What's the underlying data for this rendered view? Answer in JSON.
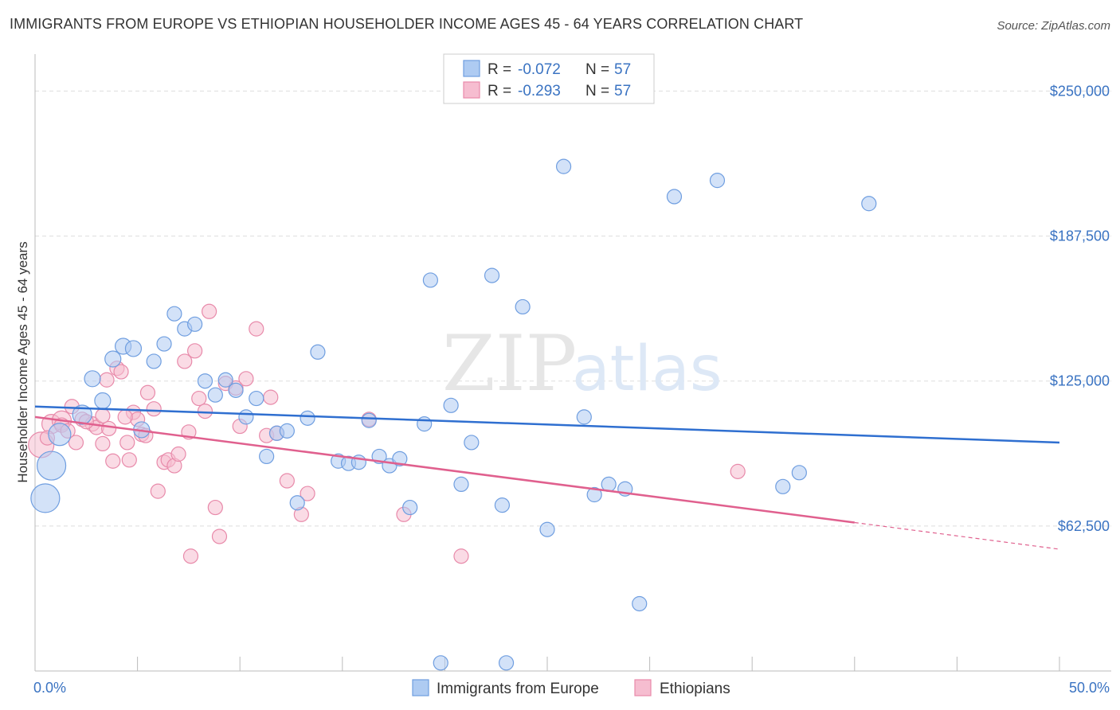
{
  "title": "IMMIGRANTS FROM EUROPE VS ETHIOPIAN HOUSEHOLDER INCOME AGES 45 - 64 YEARS CORRELATION CHART",
  "source": "Source: ZipAtlas.com",
  "watermark": {
    "part1": "ZIP",
    "part2": "atlas"
  },
  "colors": {
    "blue_fill": "#aecbf2",
    "blue_stroke": "#6f9ee0",
    "blue_line": "#2f6fd0",
    "pink_fill": "#f6bdd0",
    "pink_stroke": "#e88aaa",
    "pink_line": "#e0608e",
    "axis_text": "#3a73c2",
    "grid": "#dddddd"
  },
  "legend": {
    "rows": [
      {
        "r_label": "R =",
        "r_value": "-0.072",
        "n_label": "N =",
        "n_value": "57"
      },
      {
        "r_label": "R =",
        "r_value": "-0.293",
        "n_label": "N =",
        "n_value": "57"
      }
    ]
  },
  "chart_data": {
    "type": "scatter",
    "ylabel": "Householder Income Ages 45 - 64 years",
    "xlim": [
      0,
      50
    ],
    "ylim": [
      0,
      262500
    ],
    "y_ticks": [
      {
        "value": 62500,
        "label": "$62,500"
      },
      {
        "value": 125000,
        "label": "$125,000"
      },
      {
        "value": 187500,
        "label": "$187,500"
      },
      {
        "value": 250000,
        "label": "$250,000"
      }
    ],
    "x_tick_labels": {
      "min": "0.0%",
      "max": "50.0%"
    },
    "x_minor_ticks": [
      5,
      10,
      15,
      20,
      25,
      30,
      35,
      40,
      45,
      50
    ],
    "grid": true,
    "legend_position": "top-center",
    "series": [
      {
        "name": "Immigrants from Europe",
        "trend": {
          "x": [
            0,
            50
          ],
          "y": [
            114000,
            98500
          ],
          "dashed_from": null
        },
        "points": [
          [
            0.5,
            74500,
            18
          ],
          [
            0.8,
            88500,
            18
          ],
          [
            1.2,
            102000,
            14
          ],
          [
            2.3,
            110500,
            12
          ],
          [
            2.8,
            126000,
            10
          ],
          [
            3.3,
            116500,
            10
          ],
          [
            3.8,
            134500,
            10
          ],
          [
            4.3,
            140000,
            10
          ],
          [
            4.8,
            139000,
            10
          ],
          [
            5.2,
            104000,
            10
          ],
          [
            5.8,
            133500,
            9
          ],
          [
            6.3,
            141000,
            9
          ],
          [
            6.8,
            154000,
            9
          ],
          [
            7.3,
            147500,
            9
          ],
          [
            7.8,
            149500,
            9
          ],
          [
            8.3,
            125000,
            9
          ],
          [
            8.8,
            119000,
            9
          ],
          [
            9.3,
            125500,
            9
          ],
          [
            9.8,
            121000,
            9
          ],
          [
            10.3,
            109500,
            9
          ],
          [
            10.8,
            117500,
            9
          ],
          [
            11.3,
            92500,
            9
          ],
          [
            11.8,
            102500,
            9
          ],
          [
            12.3,
            103500,
            9
          ],
          [
            12.8,
            72500,
            9
          ],
          [
            13.3,
            109000,
            9
          ],
          [
            13.8,
            137500,
            9
          ],
          [
            14.8,
            90500,
            9
          ],
          [
            15.3,
            89500,
            9
          ],
          [
            15.8,
            90000,
            9
          ],
          [
            16.3,
            108000,
            9
          ],
          [
            16.8,
            92500,
            9
          ],
          [
            17.3,
            88500,
            9
          ],
          [
            17.8,
            91500,
            9
          ],
          [
            18.3,
            70500,
            9
          ],
          [
            19.0,
            106500,
            9
          ],
          [
            19.3,
            168500,
            9
          ],
          [
            19.8,
            3500,
            9
          ],
          [
            20.3,
            114500,
            9
          ],
          [
            20.8,
            80500,
            9
          ],
          [
            21.3,
            98500,
            9
          ],
          [
            22.3,
            170500,
            9
          ],
          [
            22.8,
            71500,
            9
          ],
          [
            23.0,
            3500,
            9
          ],
          [
            23.8,
            157000,
            9
          ],
          [
            25.0,
            61000,
            9
          ],
          [
            25.8,
            217500,
            9
          ],
          [
            26.8,
            109500,
            9
          ],
          [
            27.3,
            76000,
            9
          ],
          [
            28.0,
            80500,
            9
          ],
          [
            28.8,
            78500,
            9
          ],
          [
            29.5,
            29000,
            9
          ],
          [
            31.2,
            204500,
            9
          ],
          [
            33.3,
            211500,
            0
          ],
          [
            36.5,
            79500,
            9
          ],
          [
            37.3,
            85500,
            9
          ],
          [
            40.7,
            201500,
            9
          ]
        ]
      },
      {
        "name": "Ethiopians",
        "trend": {
          "x": [
            0,
            40
          ],
          "y": [
            109500,
            64000
          ],
          "dashed_from": 40,
          "dashed_to": 50,
          "dashed_end_y": 52500
        },
        "points": [
          [
            0.3,
            97500,
            16
          ],
          [
            0.8,
            106500,
            12
          ],
          [
            1.3,
            108000,
            12
          ],
          [
            1.3,
            106000,
            9
          ],
          [
            1.8,
            114000,
            9
          ],
          [
            2.0,
            98500,
            9
          ],
          [
            2.3,
            108500,
            9
          ],
          [
            2.8,
            106500,
            9
          ],
          [
            3.0,
            105000,
            9
          ],
          [
            3.3,
            98000,
            9
          ],
          [
            3.3,
            110000,
            9
          ],
          [
            3.5,
            125500,
            9
          ],
          [
            3.8,
            90500,
            9
          ],
          [
            4.0,
            130500,
            9
          ],
          [
            4.2,
            129000,
            9
          ],
          [
            4.5,
            98500,
            9
          ],
          [
            4.6,
            91000,
            9
          ],
          [
            4.8,
            111500,
            9
          ],
          [
            5.0,
            108500,
            9
          ],
          [
            5.2,
            102000,
            9
          ],
          [
            5.5,
            120000,
            9
          ],
          [
            5.8,
            113000,
            9
          ],
          [
            6.0,
            77500,
            9
          ],
          [
            6.3,
            90000,
            9
          ],
          [
            6.5,
            91000,
            9
          ],
          [
            6.8,
            88500,
            9
          ],
          [
            7.0,
            93500,
            9
          ],
          [
            7.3,
            133500,
            9
          ],
          [
            7.5,
            103000,
            9
          ],
          [
            7.8,
            138000,
            9
          ],
          [
            8.0,
            117500,
            9
          ],
          [
            8.3,
            112000,
            9
          ],
          [
            8.5,
            155000,
            9
          ],
          [
            8.8,
            70500,
            9
          ],
          [
            9.0,
            58000,
            9
          ],
          [
            9.3,
            124000,
            9
          ],
          [
            9.8,
            122000,
            9
          ],
          [
            10.0,
            105500,
            9
          ],
          [
            10.3,
            126000,
            9
          ],
          [
            10.8,
            147500,
            9
          ],
          [
            11.3,
            101500,
            9
          ],
          [
            11.5,
            118000,
            9
          ],
          [
            11.8,
            102500,
            9
          ],
          [
            7.6,
            49500,
            9
          ],
          [
            12.3,
            82000,
            0
          ],
          [
            13.0,
            67500,
            9
          ],
          [
            13.3,
            76500,
            9
          ],
          [
            16.3,
            108500,
            9
          ],
          [
            18.0,
            67500,
            9
          ],
          [
            20.8,
            49500,
            9
          ],
          [
            34.3,
            86000,
            9
          ],
          [
            0.6,
            100500,
            9
          ],
          [
            1.6,
            103500,
            9
          ],
          [
            2.5,
            107500,
            9
          ],
          [
            3.6,
            104500,
            9
          ],
          [
            4.4,
            109500,
            9
          ],
          [
            5.4,
            101500,
            9
          ]
        ]
      }
    ]
  },
  "bottom_legend": [
    {
      "label": "Immigrants from Europe"
    },
    {
      "label": "Ethiopians"
    }
  ]
}
